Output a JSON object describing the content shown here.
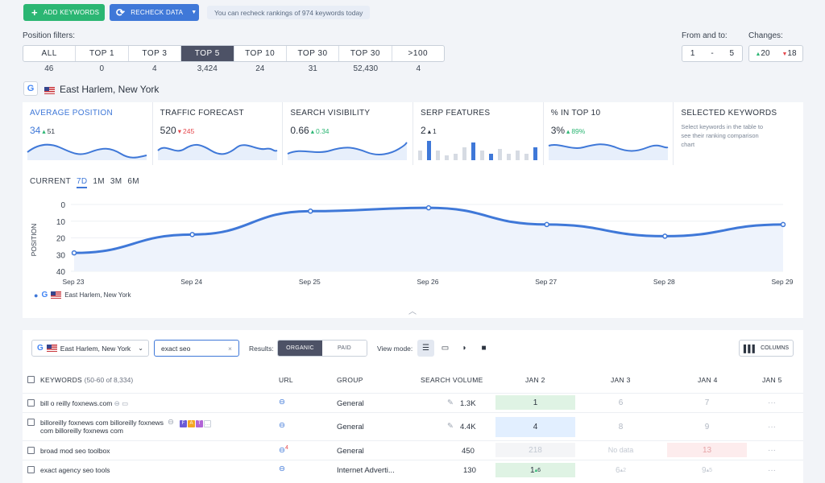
{
  "toolbar": {
    "add_keywords": "ADD KEYWORDS",
    "recheck_data": "RECHECK DATA",
    "recheck_note": "You can recheck rankings of 974 keywords today"
  },
  "filters": {
    "label": "Position filters:",
    "items": [
      {
        "label": "ALL",
        "count": "46"
      },
      {
        "label": "TOP 1",
        "count": "0"
      },
      {
        "label": "TOP 3",
        "count": "4"
      },
      {
        "label": "TOP 5",
        "count": "3,424",
        "active": true
      },
      {
        "label": "TOP 10",
        "count": "24"
      },
      {
        "label": "TOP 30",
        "count": "31"
      },
      {
        "label": "TOP 30",
        "count": "52,430"
      },
      {
        "label": ">100",
        "count": "4"
      }
    ]
  },
  "range": {
    "label": "From and to:",
    "from": "1",
    "sep": "-",
    "to": "5"
  },
  "changes": {
    "label": "Changes:",
    "up": "20",
    "down": "18"
  },
  "location": {
    "name": "East Harlem, New York"
  },
  "cards": [
    {
      "title": "AVERAGE POSITION",
      "value": "34",
      "delta": "51",
      "dir": "up",
      "active": true
    },
    {
      "title": "TRAFFIC FORECAST",
      "value": "520",
      "delta": "245",
      "dir": "down"
    },
    {
      "title": "SEARCH VISIBILITY",
      "value": "0.66",
      "delta": "0.34",
      "dir": "up"
    },
    {
      "title": "SERP FEATURES",
      "value": "2",
      "delta": "1",
      "dir": "up"
    },
    {
      "title": "% IN TOP 10",
      "value": "3%",
      "delta": "89%",
      "dir": "up"
    },
    {
      "title": "SELECTED KEYWORDS",
      "desc": "Select keywords in the table to see their ranking comparison chart"
    }
  ],
  "range_tabs": [
    "CURRENT",
    "7D",
    "1M",
    "3M",
    "6M"
  ],
  "chart_data": {
    "type": "line",
    "ylabel": "POSITION",
    "y_ticks": [
      "0",
      "10",
      "20",
      "30",
      "40"
    ],
    "ylim": [
      40,
      0
    ],
    "x": [
      "Sep 23",
      "Sep 24",
      "Sep 25",
      "Sep 26",
      "Sep 27",
      "Sep 28",
      "Sep 29"
    ],
    "series": [
      {
        "name": "East Harlem, New York",
        "values": [
          29,
          18,
          4,
          2,
          12,
          19,
          12
        ]
      }
    ],
    "color": "#3f78d8"
  },
  "table_toolbar": {
    "location": "East Harlem, New York",
    "search_value": "exact seo",
    "results_label": "Results:",
    "organic": "ORGANIC",
    "paid": "PAID",
    "view_label": "View mode:",
    "columns": "COLUMNS"
  },
  "table": {
    "headers": {
      "keywords": "KEYWORDS",
      "keywords_count": "(50-60 of 8,334)",
      "url": "URL",
      "group": "GROUP",
      "volume": "SEARCH VOLUME",
      "jan2": "JAN 2",
      "jan3": "JAN 3",
      "jan4": "JAN 4",
      "jan5": "JAN 5"
    },
    "rows": [
      {
        "keyword": "bill o reilly foxnews.com",
        "group": "General",
        "volume": "1.3K",
        "jan2": "1",
        "jan3": "6",
        "jan4": "7",
        "jan5": "···"
      },
      {
        "keyword": "billoreilly foxnews com billoreilly foxnews com billoreilly foxnews com",
        "group": "General",
        "volume": "4.4K",
        "jan2": "4",
        "jan3": "8",
        "jan4": "9",
        "jan5": "···"
      },
      {
        "keyword": "broad mod seo toolbox",
        "url_badge": "4",
        "group": "General",
        "volume": "450",
        "jan2": "218",
        "jan3": "No data",
        "jan4": "13",
        "jan5": "···"
      },
      {
        "keyword": "exact agency seo tools",
        "group": "Internet Adverti...",
        "volume": "130",
        "jan2": "1",
        "jan2_delta": "6",
        "jan3": "6",
        "jan3_delta": "2",
        "jan4": "9",
        "jan4_delta": "5",
        "jan5": "···"
      }
    ],
    "serp_chips": [
      "F",
      "A",
      "T"
    ]
  }
}
